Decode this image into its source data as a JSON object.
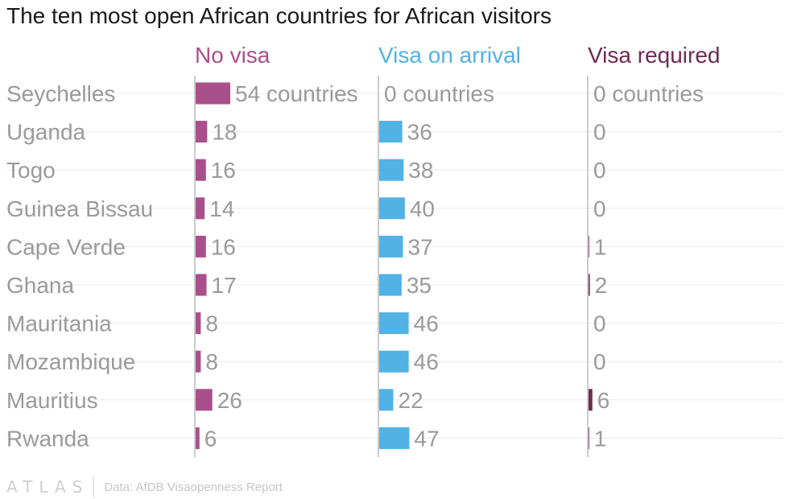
{
  "chart_data": {
    "type": "bar",
    "title": "The ten most open African countries for African visitors",
    "categories": [
      "Seychelles",
      "Uganda",
      "Togo",
      "Guinea Bissau",
      "Cape Verde",
      "Ghana",
      "Mauritania",
      "Mozambique",
      "Mauritius",
      "Rwanda"
    ],
    "series": [
      {
        "name": "No visa",
        "color": "#a94f8a",
        "values": [
          54,
          18,
          16,
          14,
          16,
          17,
          8,
          8,
          26,
          6
        ]
      },
      {
        "name": "Visa on arrival",
        "color": "#51b2e5",
        "values": [
          0,
          36,
          38,
          40,
          37,
          35,
          46,
          46,
          22,
          47
        ]
      },
      {
        "name": "Visa required",
        "color": "#6e2a55",
        "values": [
          0,
          0,
          0,
          0,
          1,
          2,
          0,
          0,
          6,
          1
        ]
      }
    ],
    "first_row_unit": "countries",
    "xlim": [
      0,
      54
    ],
    "grid": true,
    "legend": "column headers"
  },
  "footer": {
    "logo": "ATLAS",
    "source": "Data: AfDB Visaopenness Report"
  }
}
